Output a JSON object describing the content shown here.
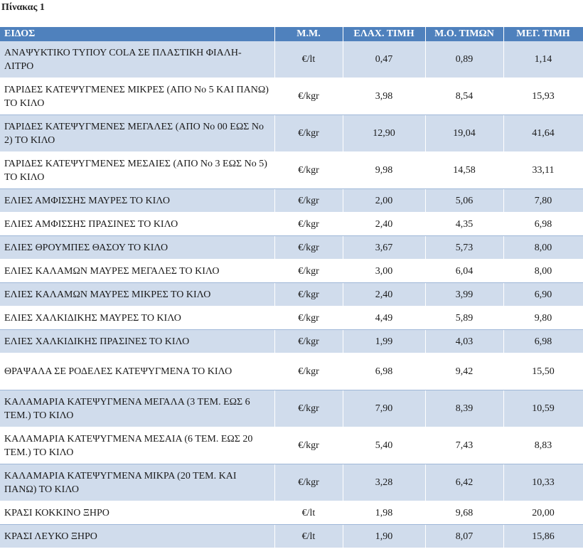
{
  "caption": "Πίνακας 1",
  "headers": [
    "ΕΙΔΟΣ",
    "Μ.Μ.",
    "ΕΛΑΧ. ΤΙΜΗ",
    "Μ.Ο. ΤΙΜΩΝ",
    "ΜΕΓ. ΤΙΜΗ"
  ],
  "rows": [
    {
      "name": "ΑΝΑΨΥΚΤΙΚΟ ΤΥΠΟΥ COLA ΣΕ ΠΛΑΣΤΙΚΗ ΦΙΑΛΗ-ΛΙΤΡΟ",
      "unit": "€/lt",
      "min": "0,47",
      "avg": "0,89",
      "max": "1,14"
    },
    {
      "name": "ΓΑΡΙΔΕΣ ΚΑΤΕΨΥΓΜΕΝΕΣ  ΜΙΚΡΕΣ (ΑΠΟ Νο 5 ΚΑΙ ΠΑΝΩ) ΤΟ ΚΙΛΟ",
      "unit": "€/kgr",
      "min": "3,98",
      "avg": "8,54",
      "max": "15,93"
    },
    {
      "name": "ΓΑΡΙΔΕΣ ΚΑΤΕΨΥΓΜΕΝΕΣ ΜΕΓΑΛΕΣ (ΑΠΟ Νο 00 ΕΩΣ Νο 2) ΤΟ ΚΙΛΟ",
      "unit": "€/kgr",
      "min": "12,90",
      "avg": "19,04",
      "max": "41,64"
    },
    {
      "name": "ΓΑΡΙΔΕΣ ΚΑΤΕΨΥΓΜΕΝΕΣ ΜΕΣΑΙΕΣ (ΑΠΟ Νο 3 ΕΩΣ Νο 5) ΤΟ ΚΙΛΟ",
      "unit": "€/kgr",
      "min": "9,98",
      "avg": "14,58",
      "max": "33,11"
    },
    {
      "name": "ΕΛΙΕΣ ΑΜΦΙΣΣΗΣ ΜΑΥΡΕΣ ΤΟ ΚΙΛΟ",
      "unit": "€/kgr",
      "min": "2,00",
      "avg": "5,06",
      "max": "7,80"
    },
    {
      "name": "ΕΛΙΕΣ ΑΜΦΙΣΣΗΣ ΠΡΑΣΙΝΕΣ ΤΟ ΚΙΛΟ",
      "unit": "€/kgr",
      "min": "2,40",
      "avg": "4,35",
      "max": "6,98"
    },
    {
      "name": "ΕΛΙΕΣ ΘΡΟΥΜΠΕΣ ΘΑΣΟΥ ΤΟ ΚΙΛΟ",
      "unit": "€/kgr",
      "min": "3,67",
      "avg": "5,73",
      "max": "8,00"
    },
    {
      "name": "ΕΛΙΕΣ ΚΑΛΑΜΩΝ ΜΑΥΡΕΣ ΜΕΓΑΛΕΣ ΤΟ ΚΙΛΟ",
      "unit": "€/kgr",
      "min": "3,00",
      "avg": "6,04",
      "max": "8,00"
    },
    {
      "name": "ΕΛΙΕΣ ΚΑΛΑΜΩΝ ΜΑΥΡΕΣ ΜΙΚΡΕΣ ΤΟ ΚΙΛΟ",
      "unit": "€/kgr",
      "min": "2,40",
      "avg": "3,99",
      "max": "6,90"
    },
    {
      "name": "ΕΛΙΕΣ ΧΑΛΚΙΔΙΚΗΣ ΜΑΥΡΕΣ ΤΟ ΚΙΛΟ",
      "unit": "€/kgr",
      "min": "4,49",
      "avg": "5,89",
      "max": "9,80"
    },
    {
      "name": "ΕΛΙΕΣ ΧΑΛΚΙΔΙΚΗΣ ΠΡΑΣΙΝΕΣ ΤΟ ΚΙΛΟ",
      "unit": "€/kgr",
      "min": "1,99",
      "avg": "4,03",
      "max": "6,98"
    },
    {
      "name": "ΘΡΑΨΑΛΑ ΣΕ ΡΟΔΕΛΕΣ ΚΑΤΕΨΥΓΜΕΝΑ ΤΟ ΚΙΛΟ",
      "unit": "€/kgr",
      "min": "6,98",
      "avg": "9,42",
      "max": "15,50"
    },
    {
      "name": "ΚΑΛΑΜΑΡΙΑ ΚΑΤΕΨΥΓΜΕΝΑ  ΜΕΓΑΛΑ  (3 ΤΕΜ. ΕΩΣ 6 ΤΕΜ.) ΤΟ ΚΙΛΟ",
      "unit": "€/kgr",
      "min": "7,90",
      "avg": "8,39",
      "max": "10,59"
    },
    {
      "name": "ΚΑΛΑΜΑΡΙΑ ΚΑΤΕΨΥΓΜΕΝΑ ΜΕΣΑΙΑ (6 ΤΕΜ. ΕΩΣ 20 ΤΕΜ.) ΤΟ ΚΙΛΟ",
      "unit": "€/kgr",
      "min": "5,40",
      "avg": "7,43",
      "max": "8,83"
    },
    {
      "name": "ΚΑΛΑΜΑΡΙΑ ΚΑΤΕΨΥΓΜΕΝΑ ΜΙΚΡΑ (20 ΤΕΜ. ΚΑΙ ΠΑΝΩ) ΤΟ ΚΙΛΟ",
      "unit": "€/kgr",
      "min": "3,28",
      "avg": "6,42",
      "max": "10,33"
    },
    {
      "name": "ΚΡΑΣΙ ΚΟΚΚΙΝΟ ΞΗΡΟ",
      "unit": "€/lt",
      "min": "1,98",
      "avg": "9,68",
      "max": "20,00"
    },
    {
      "name": "ΚΡΑΣΙ ΛΕΥΚΟ ΞΗΡΟ",
      "unit": "€/lt",
      "min": "1,90",
      "avg": "8,07",
      "max": "15,86"
    }
  ]
}
